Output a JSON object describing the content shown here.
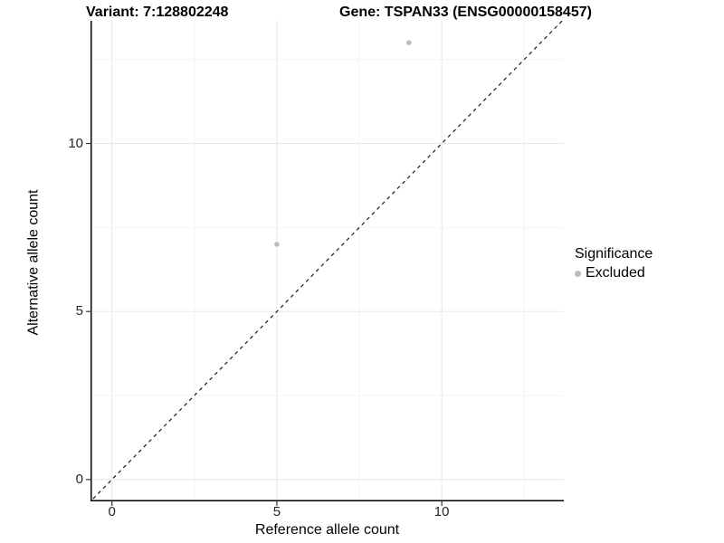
{
  "chart_data": {
    "type": "scatter",
    "title_left": "Variant: 7:128802248",
    "title_right": "Gene: TSPAN33 (ENSG00000158457)",
    "xlabel": "Reference allele count",
    "ylabel": "Alternative allele count",
    "xlim": [
      -0.65,
      13.7
    ],
    "ylim": [
      -0.65,
      13.65
    ],
    "x_ticks": [
      0,
      5,
      10
    ],
    "y_ticks": [
      0,
      5,
      10
    ],
    "x_minor_ticks": [
      2.5,
      7.5,
      12.5
    ],
    "y_minor_ticks": [
      2.5,
      7.5,
      12.5
    ],
    "grid": {
      "major": true,
      "minor": true
    },
    "series": [
      {
        "name": "Excluded",
        "color": "#bdbdbd",
        "points": [
          {
            "x": 5,
            "y": 7
          },
          {
            "x": 9,
            "y": 13
          }
        ]
      }
    ],
    "reference_line": {
      "type": "identity",
      "slope": 1,
      "intercept": 0,
      "style": "dashed",
      "color": "#1a1a1a"
    },
    "legend": {
      "title": "Significance",
      "position": "right",
      "items": [
        {
          "label": "Excluded",
          "color": "#bdbdbd"
        }
      ]
    }
  },
  "colors": {
    "background": "#ffffff",
    "grid_major": "#e8e8e8",
    "grid_minor": "#f4f4f4",
    "axis": "#000000",
    "tick": "#333333",
    "tick_text": "#262626"
  }
}
